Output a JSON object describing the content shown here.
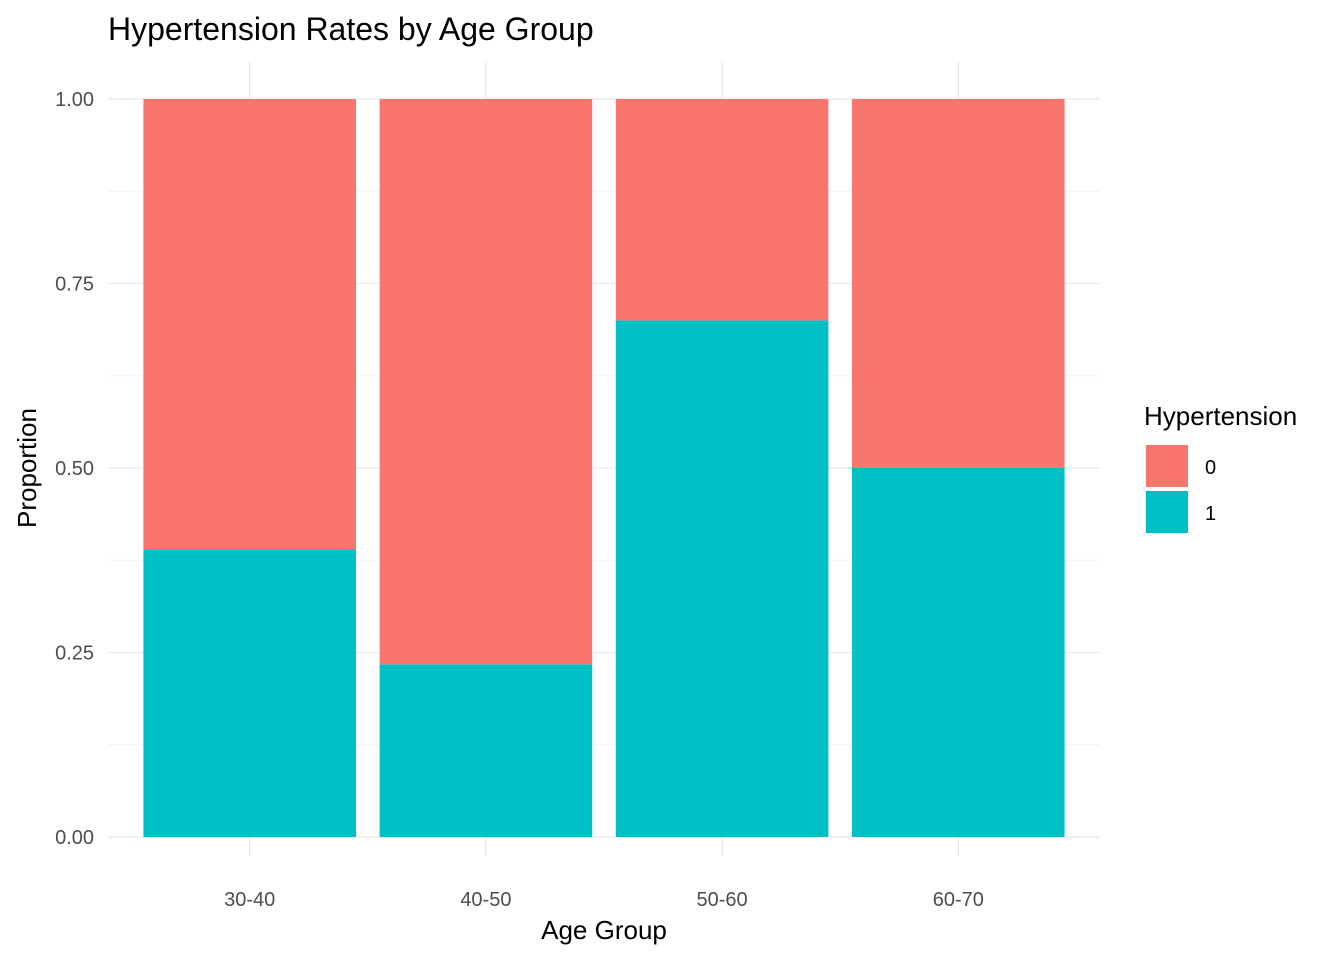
{
  "chart_data": {
    "type": "bar",
    "stacked": true,
    "title": "Hypertension Rates by Age Group",
    "xlabel": "Age Group",
    "ylabel": "Proportion",
    "categories": [
      "30-40",
      "40-50",
      "50-60",
      "60-70"
    ],
    "series": [
      {
        "name": "0",
        "color": "#F8766D",
        "values": [
          0.61,
          0.766,
          0.3,
          0.5
        ]
      },
      {
        "name": "1",
        "color": "#00BFC4",
        "values": [
          0.39,
          0.234,
          0.7,
          0.5
        ]
      }
    ],
    "ylim": [
      0,
      1
    ],
    "yticks": [
      0,
      0.25,
      0.5,
      0.75,
      1
    ],
    "ytick_labels": [
      "0.00",
      "0.25",
      "0.50",
      "0.75",
      "1.00"
    ],
    "grid": true,
    "legend": {
      "title": "Hypertension",
      "placement": "right"
    }
  }
}
